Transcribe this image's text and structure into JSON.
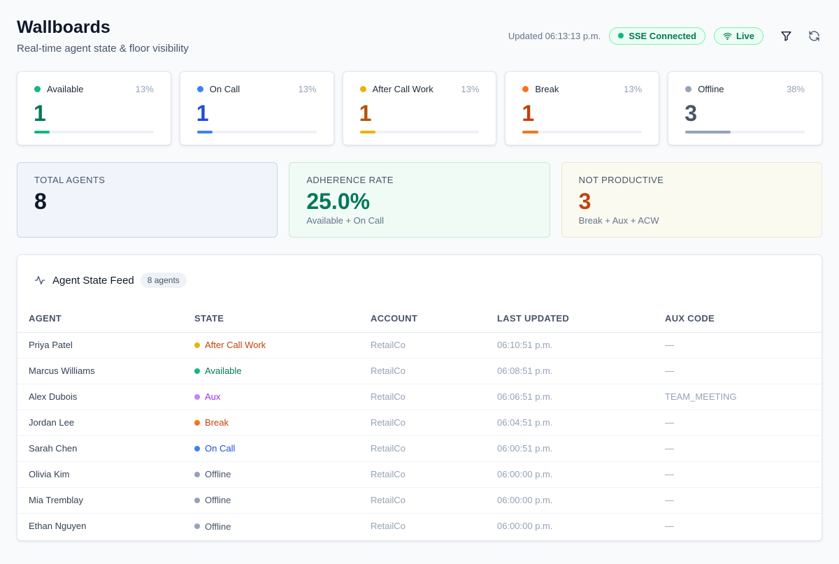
{
  "header": {
    "title": "Wallboards",
    "subtitle": "Real-time agent state & floor visibility",
    "updated": "Updated 06:13:13 p.m.",
    "sse_label": "SSE Connected",
    "live_label": "Live"
  },
  "stats": [
    {
      "label": "Available",
      "pct": "13%",
      "count": "1",
      "fill": 0.13,
      "color": "#10b981",
      "num_color": "#047857"
    },
    {
      "label": "On Call",
      "pct": "13%",
      "count": "1",
      "fill": 0.13,
      "color": "#3b82f6",
      "num_color": "#1d4ed8"
    },
    {
      "label": "After Call Work",
      "pct": "13%",
      "count": "1",
      "fill": 0.13,
      "color": "#eab308",
      "num_color": "#b45309"
    },
    {
      "label": "Break",
      "pct": "13%",
      "count": "1",
      "fill": 0.13,
      "color": "#f97316",
      "num_color": "#c2410c"
    },
    {
      "label": "Offline",
      "pct": "38%",
      "count": "3",
      "fill": 0.38,
      "color": "#94a3b8",
      "num_color": "#475569"
    }
  ],
  "summary": {
    "total": {
      "label": "TOTAL AGENTS",
      "value": "8"
    },
    "adherence": {
      "label": "ADHERENCE RATE",
      "value": "25.0%",
      "sub": "Available + On Call"
    },
    "not_productive": {
      "label": "NOT PRODUCTIVE",
      "value": "3",
      "sub": "Break + Aux + ACW"
    }
  },
  "feed": {
    "title": "Agent State Feed",
    "badge": "8 agents",
    "columns": [
      "AGENT",
      "STATE",
      "ACCOUNT",
      "LAST UPDATED",
      "AUX CODE"
    ],
    "rows": [
      {
        "agent": "Priya Patel",
        "state": "After Call Work",
        "state_color": "#c2410c",
        "dot": "#eab308",
        "account": "RetailCo",
        "updated": "06:10:51 p.m.",
        "aux": "—"
      },
      {
        "agent": "Marcus Williams",
        "state": "Available",
        "state_color": "#047857",
        "dot": "#10b981",
        "account": "RetailCo",
        "updated": "06:08:51 p.m.",
        "aux": "—"
      },
      {
        "agent": "Alex Dubois",
        "state": "Aux",
        "state_color": "#9333ea",
        "dot": "#c084fc",
        "account": "RetailCo",
        "updated": "06:06:51 p.m.",
        "aux": "TEAM_MEETING"
      },
      {
        "agent": "Jordan Lee",
        "state": "Break",
        "state_color": "#c2410c",
        "dot": "#f97316",
        "account": "RetailCo",
        "updated": "06:04:51 p.m.",
        "aux": "—"
      },
      {
        "agent": "Sarah Chen",
        "state": "On Call",
        "state_color": "#1d4ed8",
        "dot": "#3b82f6",
        "account": "RetailCo",
        "updated": "06:00:51 p.m.",
        "aux": "—"
      },
      {
        "agent": "Olivia Kim",
        "state": "Offline",
        "state_color": "#475569",
        "dot": "#94a3b8",
        "account": "RetailCo",
        "updated": "06:00:00 p.m.",
        "aux": "—"
      },
      {
        "agent": "Mia Tremblay",
        "state": "Offline",
        "state_color": "#475569",
        "dot": "#94a3b8",
        "account": "RetailCo",
        "updated": "06:00:00 p.m.",
        "aux": "—"
      },
      {
        "agent": "Ethan Nguyen",
        "state": "Offline",
        "state_color": "#475569",
        "dot": "#94a3b8",
        "account": "RetailCo",
        "updated": "06:00:00 p.m.",
        "aux": "—"
      }
    ]
  },
  "icons": {
    "filter": "filter-icon",
    "refresh": "refresh-icon",
    "wifi": "wifi-icon",
    "activity": "activity-icon"
  }
}
